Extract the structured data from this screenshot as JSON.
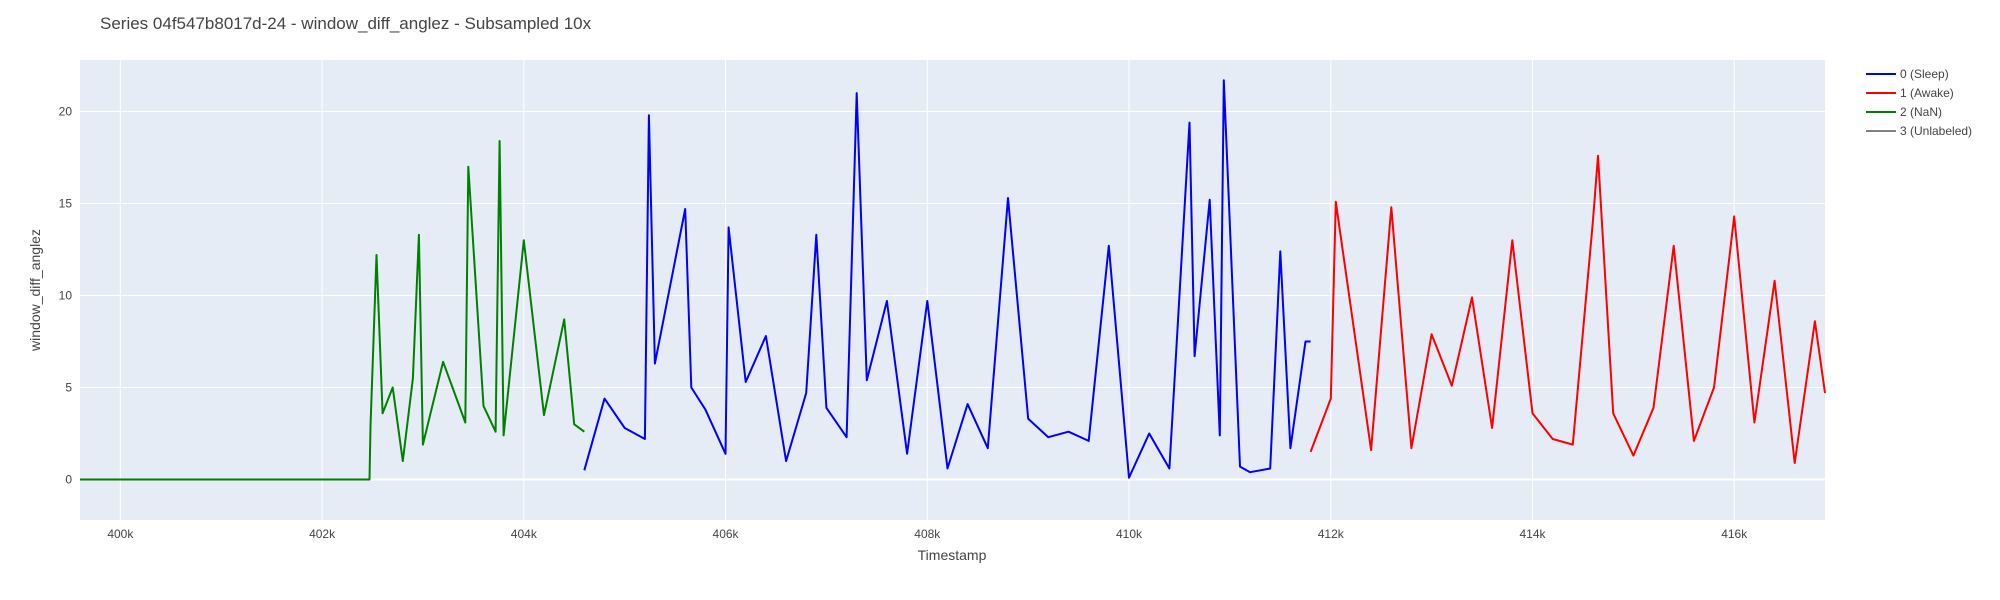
{
  "chart_data": {
    "type": "line",
    "title": "Series 04f547b8017d-24 - window_diff_anglez - Subsampled 10x",
    "xlabel": "Timestamp",
    "ylabel": "window_diff_anglez",
    "xlim": [
      399600,
      416900
    ],
    "ylim": [
      -2.2,
      22.8
    ],
    "x_ticks": [
      400000,
      402000,
      404000,
      406000,
      408000,
      410000,
      412000,
      414000,
      416000
    ],
    "x_tick_labels": [
      "400k",
      "402k",
      "404k",
      "406k",
      "408k",
      "410k",
      "412k",
      "414k",
      "416k"
    ],
    "y_ticks": [
      0,
      5,
      10,
      15,
      20
    ],
    "y_tick_labels": [
      "0",
      "5",
      "10",
      "15",
      "20"
    ],
    "grid": true,
    "legend_position": "top-right outside",
    "background": "#e5ecf6",
    "series": [
      {
        "name": "0 (Sleep)",
        "color": "#0000ff",
        "x": [
          404600,
          404800,
          405000,
          405200,
          405240,
          405300,
          405600,
          405660,
          405800,
          406000,
          406030,
          406200,
          406400,
          406600,
          406800,
          406900,
          407000,
          407200,
          407300,
          407400,
          407600,
          407800,
          408000,
          408200,
          408400,
          408600,
          408800,
          409000,
          409200,
          409400,
          409600,
          409800,
          410000,
          410200,
          410400,
          410600,
          410650,
          410800,
          410900,
          410940,
          411100,
          411200,
          411400,
          411500,
          411600,
          411750,
          411800
        ],
        "y": [
          0.5,
          4.4,
          2.8,
          2.2,
          19.8,
          6.3,
          14.7,
          5.0,
          3.8,
          1.4,
          13.7,
          5.3,
          7.8,
          1.0,
          4.7,
          13.3,
          3.9,
          2.3,
          21.0,
          5.4,
          9.7,
          1.4,
          9.7,
          0.6,
          4.1,
          1.7,
          15.3,
          3.3,
          2.3,
          2.6,
          2.1,
          12.7,
          0.1,
          2.5,
          0.6,
          19.4,
          6.7,
          15.2,
          2.4,
          21.7,
          0.7,
          0.4,
          0.6,
          12.4,
          1.7,
          7.5,
          7.5
        ]
      },
      {
        "name": "1 (Awake)",
        "color": "#ff0000",
        "x": [
          411800,
          412000,
          412050,
          412400,
          412600,
          412800,
          413000,
          413200,
          413400,
          413600,
          413800,
          414000,
          414200,
          414400,
          414600,
          414650,
          414800,
          415000,
          415200,
          415400,
          415600,
          415800,
          416000,
          416200,
          416400,
          416600,
          416800,
          416900
        ],
        "y": [
          1.5,
          4.4,
          15.1,
          1.6,
          14.8,
          1.7,
          7.9,
          5.1,
          9.9,
          2.8,
          13.0,
          3.6,
          2.2,
          1.9,
          14.1,
          17.6,
          3.6,
          1.3,
          3.9,
          12.7,
          2.1,
          5.0,
          14.3,
          3.1,
          10.8,
          0.9,
          8.6,
          4.7
        ]
      },
      {
        "name": "2 (NaN)",
        "color": "#008000",
        "x": [
          399600,
          400000,
          401000,
          402000,
          402470,
          402480,
          402540,
          402600,
          402700,
          402800,
          402900,
          402960,
          403000,
          403200,
          403420,
          403450,
          403600,
          403720,
          403760,
          403800,
          404000,
          404200,
          404400,
          404500,
          404600
        ],
        "y": [
          0,
          0,
          0,
          0,
          0,
          2.9,
          12.2,
          3.6,
          5.0,
          1.0,
          5.5,
          13.3,
          1.9,
          6.4,
          3.1,
          17.0,
          4.0,
          2.6,
          18.4,
          2.4,
          13.0,
          3.5,
          8.7,
          3.0,
          2.6
        ]
      },
      {
        "name": "3 (Unlabeled)",
        "color": "#808080",
        "x": [],
        "y": []
      }
    ]
  }
}
